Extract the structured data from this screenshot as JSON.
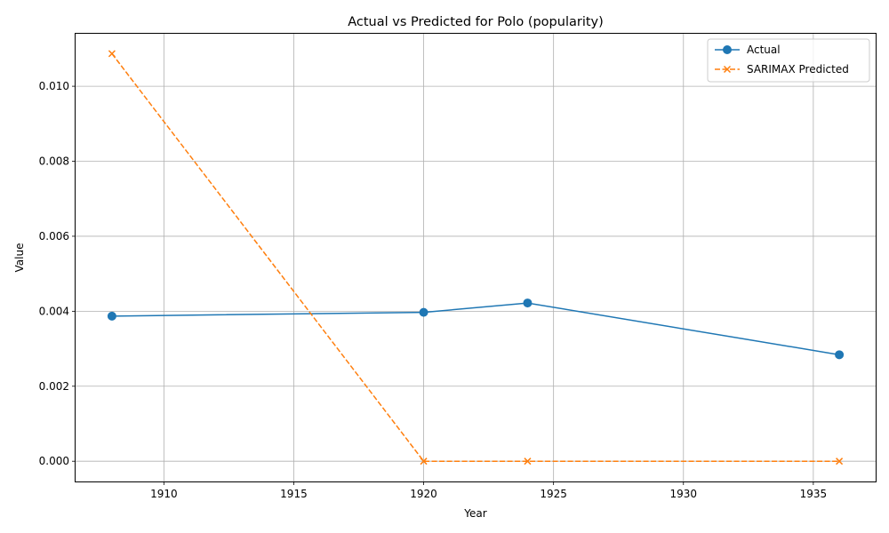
{
  "chart_data": {
    "type": "line",
    "title": "Actual vs Predicted for Polo (popularity)",
    "xlabel": "Year",
    "ylabel": "Value",
    "xlim": [
      1906.6,
      1937.4
    ],
    "ylim": [
      -0.00054,
      0.0114
    ],
    "xticks": [
      1910,
      1915,
      1920,
      1925,
      1930,
      1935
    ],
    "xtick_labels": [
      "1910",
      "1915",
      "1920",
      "1925",
      "1930",
      "1935"
    ],
    "yticks": [
      0.0,
      0.002,
      0.004,
      0.006,
      0.008,
      0.01
    ],
    "ytick_labels": [
      "0.000",
      "0.002",
      "0.004",
      "0.006",
      "0.008",
      "0.010"
    ],
    "grid": true,
    "legend_position": "top-right",
    "x": [
      1908,
      1920,
      1924,
      1936
    ],
    "series": [
      {
        "name": "Actual",
        "values": [
          0.00387,
          0.00397,
          0.00422,
          0.00284
        ],
        "color": "#1f77b4",
        "line_style": "solid",
        "marker": "circle"
      },
      {
        "name": "SARIMAX Predicted",
        "values": [
          0.01087,
          0.0,
          0.0,
          0.0
        ],
        "color": "#ff7f0e",
        "line_style": "dashed",
        "marker": "x"
      }
    ]
  }
}
